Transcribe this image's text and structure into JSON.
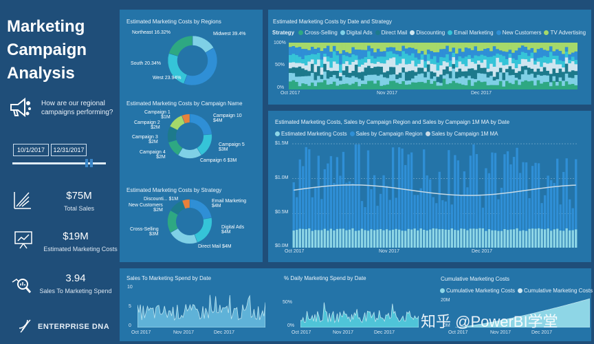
{
  "title_lines": [
    "Marketing",
    "Campaign",
    "Analysis"
  ],
  "question": "How are our regional campaigns performing?",
  "dates": {
    "start": "10/1/2017",
    "end": "12/31/2017"
  },
  "kpis": [
    {
      "value": "$75M",
      "label": "Total Sales",
      "icon": "chart-up-icon"
    },
    {
      "value": "$19M",
      "label": "Estimated Marketing Costs",
      "icon": "presentation-chart-icon"
    },
    {
      "value": "3.94",
      "label": "Sales To Marketing Spend",
      "icon": "magnifier-chart-icon"
    }
  ],
  "brand": "ENTERPRISE DNA",
  "brand_accent": "DNA",
  "watermark": "知乎 @PowerBI学堂",
  "colors": {
    "bg": "#1f4e79",
    "panel": "#2474a8",
    "teal": "#35c4d8",
    "light": "#8ed6e6",
    "green": "#2ea882",
    "blue": "#2f8fd6",
    "orange": "#e8813a",
    "lime": "#a6d96a"
  },
  "chart_data": [
    {
      "type": "pie",
      "title": "Estimated Marketing Costs by Regions",
      "slices": [
        {
          "label": "Northeast 16.32%",
          "value": 16.32,
          "color": "#7fd0e6"
        },
        {
          "label": "Midwest 39.4%",
          "value": 39.4,
          "color": "#2f8fd6"
        },
        {
          "label": "West 23.94%",
          "value": 23.94,
          "color": "#35c4d8"
        },
        {
          "label": "South 20.34%",
          "value": 20.34,
          "color": "#2ea882"
        }
      ]
    },
    {
      "type": "pie",
      "title": "Estimated Marketing Costs by Campaign Name",
      "slices": [
        {
          "label": "Campaign 10\n$4M",
          "value": 4,
          "color": "#2f8fd6"
        },
        {
          "label": "Campaign 5\n$3M",
          "value": 3,
          "color": "#35c4d8"
        },
        {
          "label": "Campaign 6 $3M",
          "value": 3,
          "color": "#7fd0e6"
        },
        {
          "label": "Campaign 4\n$2M",
          "value": 2,
          "color": "#2ea882"
        },
        {
          "label": "Campaign 3\n$2M",
          "value": 2,
          "color": "#1d7a8c"
        },
        {
          "label": "Campaign 2\n$2M",
          "value": 2,
          "color": "#a6d96a"
        },
        {
          "label": "Campaign 1\n$1M",
          "value": 1,
          "color": "#e8813a"
        }
      ]
    },
    {
      "type": "pie",
      "title": "Estimated Marketing Costs by Strategy",
      "slices": [
        {
          "label": "Email Marketing\n$4M",
          "value": 4,
          "color": "#2f8fd6"
        },
        {
          "label": "Digital Ads\n$4M",
          "value": 4,
          "color": "#35c4d8"
        },
        {
          "label": "Direct Mail $4M",
          "value": 4,
          "color": "#7fd0e6"
        },
        {
          "label": "Cross-Selling\n$3M",
          "value": 3,
          "color": "#2ea882"
        },
        {
          "label": "New Customers\n$2M",
          "value": 2,
          "color": "#1d7a8c"
        },
        {
          "label": "Discounti... $1M",
          "value": 1,
          "color": "#e8813a"
        }
      ]
    },
    {
      "type": "area",
      "title": "Estimated Marketing Costs by Date and Strategy",
      "legend_title": "Strategy",
      "series": [
        {
          "name": "Cross-Selling",
          "color": "#2ea882"
        },
        {
          "name": "Digital Ads",
          "color": "#7fd0e6"
        },
        {
          "name": "Direct Mail",
          "color": "#1d7a8c"
        },
        {
          "name": "Discounting",
          "color": "#cfe6f0"
        },
        {
          "name": "Email Marketing",
          "color": "#35c4d8"
        },
        {
          "name": "New Customers",
          "color": "#2f8fd6"
        },
        {
          "name": "TV Advertising",
          "color": "#a6d96a"
        }
      ],
      "x_ticks": [
        "Oct 2017",
        "Nov 2017",
        "Dec 2017"
      ],
      "y_ticks": [
        "100%",
        "50%",
        "0%"
      ]
    },
    {
      "type": "bar",
      "title": "Estimated Marketing Costs, Sales by Campaign Region and Sales by Campaign 1M MA by Date",
      "series": [
        {
          "name": "Estimated Marketing Costs",
          "color": "#8ed6e6"
        },
        {
          "name": "Sales by Campaign Region",
          "color": "#2f8fd6"
        },
        {
          "name": "Sales by Campaign 1M MA",
          "color": "#c9dbe6"
        }
      ],
      "y_ticks": [
        "$1.5M",
        "$1.0M",
        "$0.5M",
        "$0.0M"
      ],
      "x_ticks": [
        "Oct 2017",
        "Nov 2017",
        "Dec 2017"
      ],
      "ylim": [
        0,
        1.5
      ]
    },
    {
      "type": "area",
      "title": "Sales To Marketing Spend by Date",
      "y_ticks": [
        "10",
        "5",
        "0"
      ],
      "x_ticks": [
        "Oct 2017",
        "Nov 2017",
        "Dec 2017"
      ],
      "ylim": [
        0,
        10
      ]
    },
    {
      "type": "area",
      "title": "% Daily Marketing Spend by Date",
      "y_ticks": [
        "50%",
        "0%"
      ],
      "x_ticks": [
        "Oct 2017",
        "Nov 2017",
        "Dec 2017"
      ]
    },
    {
      "type": "area",
      "title": "Cumulative Marketing Costs",
      "series": [
        {
          "name": "Cumulative Marketing Costs",
          "color": "#8ed6e6"
        },
        {
          "name": "Cumulative Marketing Costs",
          "color": "#cfe6f0"
        }
      ],
      "y_ticks": [
        "20M",
        "0M"
      ],
      "x_ticks": [
        "Oct 2017",
        "Nov 2017",
        "Dec 2017"
      ]
    }
  ]
}
